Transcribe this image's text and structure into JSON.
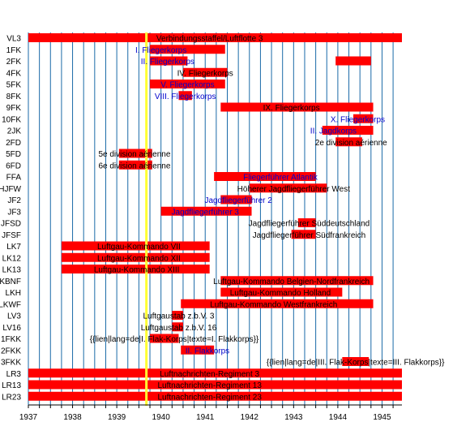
{
  "chart_data": {
    "type": "bar",
    "orientation": "horizontal-timeline",
    "xlim": [
      1937,
      1945.45
    ],
    "x_ticks": [
      "1937",
      "1938",
      "1939",
      "1940",
      "1941",
      "1942",
      "1943",
      "1944",
      "1945"
    ],
    "minor_tick_step": 0.25,
    "grid": true,
    "marker_line": 1939.67,
    "colors": {
      "bar": "#ff0000",
      "grid": "#1a6aa8",
      "marker": "#ffff33",
      "label_black": "#000000",
      "label_blue": "#0000cc",
      "axis": "#000000"
    },
    "rows": [
      {
        "label": "VL3",
        "bars": [
          [
            1937.0,
            1945.45
          ]
        ],
        "text": "Verbindungsstaffel/Luftflotte 3",
        "text_x": 1941.1,
        "text_color": "black"
      },
      {
        "label": "1FK",
        "bars": [
          [
            1939.75,
            1941.45
          ]
        ],
        "text": "I. Fliegerkorps",
        "text_x": 1940.0,
        "text_color": "blue"
      },
      {
        "label": "2FK",
        "bars": [
          [
            1939.75,
            1940.6
          ],
          [
            1943.95,
            1944.75
          ]
        ],
        "text": "II. Fliegerkorps",
        "text_x": 1940.15,
        "text_color": "blue"
      },
      {
        "label": "4FK",
        "bars": [
          [
            1940.5,
            1941.5
          ]
        ],
        "text": "IV. Fliegerkorps",
        "text_x": 1941.0,
        "text_color": "black"
      },
      {
        "label": "5FK",
        "bars": [
          [
            1939.75,
            1941.45
          ]
        ],
        "text": "V. Fliegerkorps",
        "text_x": 1940.6,
        "text_color": "blue"
      },
      {
        "label": "8FK",
        "bars": [
          [
            1940.4,
            1940.7
          ]
        ],
        "text": "VIII. Fliegerkorps",
        "text_x": 1940.55,
        "text_color": "blue"
      },
      {
        "label": "9FK",
        "bars": [
          [
            1941.35,
            1944.8
          ]
        ],
        "text": "IX. Fliegerkorps",
        "text_x": 1942.95,
        "text_color": "black"
      },
      {
        "label": "10FK",
        "bars": [
          [
            1944.35,
            1944.8
          ]
        ],
        "text": "X. Fliegerkorps",
        "text_x": 1944.45,
        "text_color": "blue"
      },
      {
        "label": "2JK",
        "bars": [
          [
            1943.65,
            1944.8
          ]
        ],
        "text": "II. Jagdkorps",
        "text_x": 1943.9,
        "text_color": "blue"
      },
      {
        "label": "2FD",
        "bars": [
          [
            1943.95,
            1944.55
          ]
        ],
        "text": "2e division aérienne",
        "text_x": 1944.3,
        "text_color": "black"
      },
      {
        "label": "5FD",
        "bars": [
          [
            1939.05,
            1939.8
          ]
        ],
        "text": "5e division aérienne",
        "text_x": 1939.4,
        "text_color": "black"
      },
      {
        "label": "6FD",
        "bars": [
          [
            1939.05,
            1939.8
          ]
        ],
        "text": "6e division aérienne",
        "text_x": 1939.4,
        "text_color": "black"
      },
      {
        "label": "FFA",
        "bars": [
          [
            1941.2,
            1943.5
          ]
        ],
        "text": "Fliegerführer Atlantik",
        "text_x": 1942.7,
        "text_color": "blue"
      },
      {
        "label": "HJFW",
        "bars": [
          [
            1942.0,
            1943.75
          ]
        ],
        "text": "Höherer Jagdfliegerführer West",
        "text_x": 1943.0,
        "text_color": "black"
      },
      {
        "label": "JF2",
        "bars": [
          [
            1941.35,
            1942.05
          ]
        ],
        "text": "Jagdfliegerführer 2",
        "text_x": 1941.75,
        "text_color": "blue"
      },
      {
        "label": "JF3",
        "bars": [
          [
            1940.0,
            1942.05
          ]
        ],
        "text": "Jagdfliegerführer 3",
        "text_x": 1941.0,
        "text_color": "blue"
      },
      {
        "label": "JFSD",
        "bars": [
          [
            1943.1,
            1943.5
          ]
        ],
        "text": "Jagdfliegerführer Süddeutschland",
        "text_x": 1943.35,
        "text_color": "black"
      },
      {
        "label": "JFSF",
        "bars": [
          [
            1942.95,
            1943.5
          ]
        ],
        "text": "Jagdfliegerführer Südfrankreich",
        "text_x": 1943.35,
        "text_color": "black"
      },
      {
        "label": "LK7",
        "bars": [
          [
            1937.75,
            1941.1
          ]
        ],
        "text": "Luftgau-Kommando VII",
        "text_x": 1939.5,
        "text_color": "black"
      },
      {
        "label": "LK12",
        "bars": [
          [
            1937.75,
            1941.1
          ]
        ],
        "text": "Luftgau-Kommando XII",
        "text_x": 1939.5,
        "text_color": "black"
      },
      {
        "label": "LK13",
        "bars": [
          [
            1937.75,
            1941.1
          ]
        ],
        "text": "Luftgau-Kommando XIII",
        "text_x": 1939.45,
        "text_color": "black"
      },
      {
        "label": "LKBNF",
        "bars": [
          [
            1941.35,
            1944.8
          ]
        ],
        "text": "Luftgau-Kommando Belgien-Nordfrankreich",
        "text_x": 1942.95,
        "text_color": "black"
      },
      {
        "label": "LKH",
        "bars": [
          [
            1941.35,
            1944.1
          ]
        ],
        "text": "Luftgau-Kommando Holland",
        "text_x": 1942.7,
        "text_color": "black"
      },
      {
        "label": "LKWF",
        "bars": [
          [
            1940.45,
            1944.8
          ]
        ],
        "text": "Luftgau-Kommando Westfrankreich",
        "text_x": 1942.55,
        "text_color": "black"
      },
      {
        "label": "LV3",
        "bars": [
          [
            1940.25,
            1940.5
          ]
        ],
        "text": "Luftgaustab z.b.V. 3",
        "text_x": 1940.4,
        "text_color": "black"
      },
      {
        "label": "LV16",
        "bars": [
          [
            1940.25,
            1940.5
          ]
        ],
        "text": "Luftgaustab z.b.V. 16",
        "text_x": 1940.4,
        "text_color": "black"
      },
      {
        "label": "1FKK",
        "bars": [
          [
            1939.75,
            1940.4
          ]
        ],
        "text": "{{lien|lang=de|I. Flak-Korps|texte=I. Flakkorps}}",
        "text_x": 1940.3,
        "text_color": "black"
      },
      {
        "label": "2FKK",
        "bars": [
          [
            1940.45,
            1941.2
          ]
        ],
        "text": "II. Flakkorps",
        "text_x": 1941.05,
        "text_color": "blue"
      },
      {
        "label": "3FKK",
        "bars": [
          [
            1944.1,
            1944.7
          ]
        ],
        "text": "{{lien|lang=de|III. Flak-Korps|texte=III. Flakkorps}}",
        "text_x": 1944.4,
        "text_color": "black"
      },
      {
        "label": "LR3",
        "bars": [
          [
            1937.0,
            1945.45
          ]
        ],
        "text": "Luftnachrichten-Regiment 3",
        "text_x": 1941.1,
        "text_color": "black"
      },
      {
        "label": "LR13",
        "bars": [
          [
            1937.0,
            1945.45
          ]
        ],
        "text": "Luftnachrichten-Regiment 13",
        "text_x": 1941.1,
        "text_color": "black"
      },
      {
        "label": "LR23",
        "bars": [
          [
            1937.0,
            1945.45
          ]
        ],
        "text": "Luftnachrichten-Regiment 23",
        "text_x": 1941.1,
        "text_color": "black"
      }
    ]
  }
}
